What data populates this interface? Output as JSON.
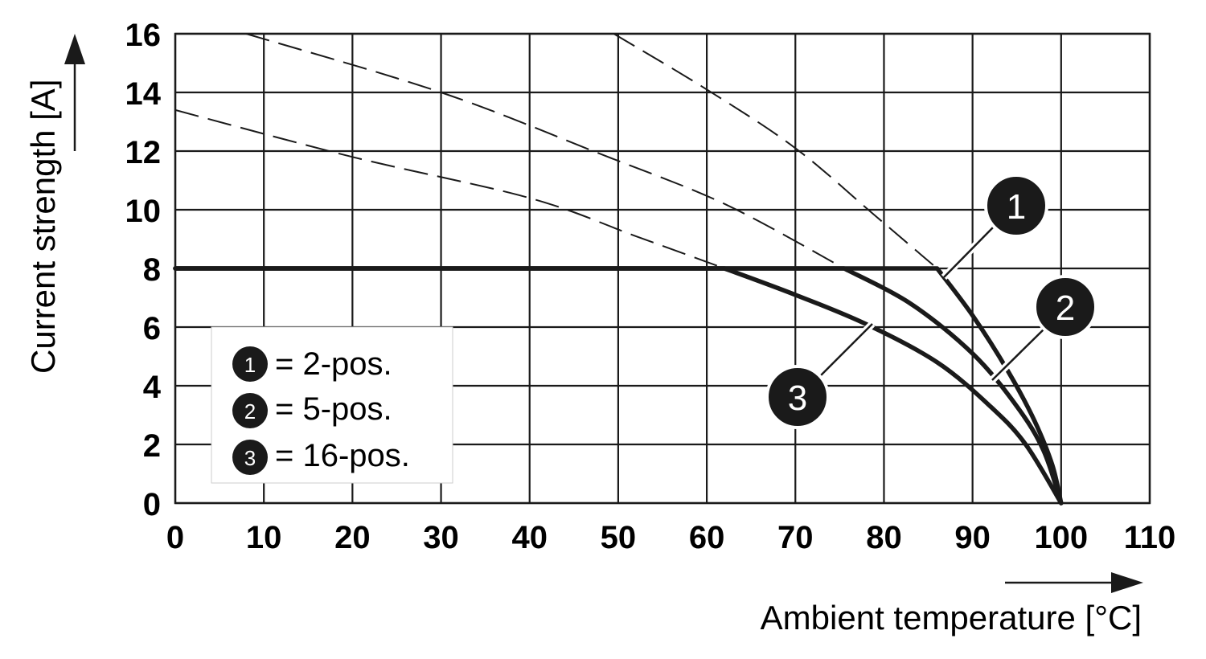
{
  "chart_data": {
    "type": "line",
    "xlabel": "Ambient temperature [°C]",
    "ylabel": "Current strength [A]",
    "xlim": [
      0,
      110
    ],
    "ylim": [
      0,
      16
    ],
    "x_ticks": [
      "0",
      "10",
      "20",
      "30",
      "40",
      "50",
      "60",
      "70",
      "80",
      "90",
      "100",
      "110"
    ],
    "y_ticks": [
      "0",
      "2",
      "4",
      "6",
      "8",
      "10",
      "12",
      "14",
      "16"
    ],
    "grid": true,
    "legend_position": "lower-left",
    "legend": [
      {
        "marker": "1",
        "text": "= 2-pos."
      },
      {
        "marker": "2",
        "text": "= 5-pos."
      },
      {
        "marker": "3",
        "text": "= 16-pos."
      }
    ],
    "series": [
      {
        "marker": "1",
        "points": [
          [
            0,
            8
          ],
          [
            86,
            8
          ],
          [
            90,
            6.4
          ],
          [
            94,
            4.5
          ],
          [
            97,
            2.8
          ],
          [
            99,
            1.3
          ],
          [
            100,
            0
          ]
        ],
        "unlimited_dashed": [
          [
            49.5,
            16
          ],
          [
            60,
            14.1
          ],
          [
            70,
            12.1
          ],
          [
            79,
            9.8
          ],
          [
            86,
            8
          ]
        ]
      },
      {
        "marker": "2",
        "points": [
          [
            0,
            8
          ],
          [
            75.5,
            8
          ],
          [
            83,
            6.8
          ],
          [
            90,
            5.1
          ],
          [
            95,
            3.3
          ],
          [
            98,
            1.8
          ],
          [
            100,
            0
          ]
        ],
        "unlimited_dashed": [
          [
            8,
            16
          ],
          [
            30,
            14
          ],
          [
            48,
            11.9
          ],
          [
            62,
            10.2
          ],
          [
            75.5,
            8
          ]
        ]
      },
      {
        "marker": "3",
        "points": [
          [
            0,
            8
          ],
          [
            62,
            8
          ],
          [
            70,
            7.1
          ],
          [
            78,
            6.1
          ],
          [
            86,
            4.8
          ],
          [
            92,
            3.3
          ],
          [
            96,
            2.0
          ],
          [
            100,
            0
          ]
        ],
        "unlimited_dashed": [
          [
            0,
            13.4
          ],
          [
            20,
            11.8
          ],
          [
            40,
            10.4
          ],
          [
            52,
            9.1
          ],
          [
            62,
            8
          ]
        ]
      }
    ]
  },
  "colors": {
    "line": "#1a1a1a",
    "grid": "#1a1a1a",
    "badge": "#1a1a1a"
  }
}
